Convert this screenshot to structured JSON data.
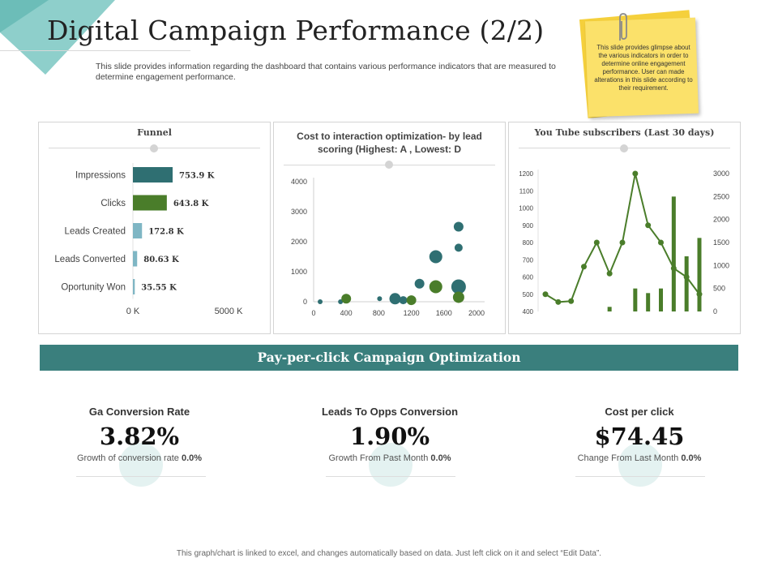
{
  "title": "Digital Campaign Performance (2/2)",
  "description": "This slide provides information regarding the dashboard that contains various performance indicators that are measured to determine engagement performance.",
  "sticky_note": "This slide provides glimpse about the various indicators in order to determine online engagement performance. User can made alterations in this slide according to their requirement.",
  "colors": {
    "teal": "#3a7f7d",
    "green": "#4a7d2a",
    "light_blue": "#7fb6c4",
    "banner": "#3a7f7d"
  },
  "chart_data": [
    {
      "type": "bar",
      "orientation": "horizontal",
      "title": "Funnel",
      "categories": [
        "Impressions",
        "Clicks",
        "Leads Created",
        "Leads Converted",
        "Oportunity Won"
      ],
      "values": [
        753.9,
        643.8,
        172.8,
        80.63,
        35.55
      ],
      "data_labels": [
        "753.9 K",
        "643.8 K",
        "172.8 K",
        "80.63 K",
        "35.55 K"
      ],
      "bar_colors": [
        "#2f6f72",
        "#4a7d2a",
        "#7fb6c4",
        "#7fb6c4",
        "#7fb6c4"
      ],
      "x_tick_labels": [
        "0 K",
        "5000 K"
      ],
      "xlim": [
        0,
        5000
      ]
    },
    {
      "type": "scatter",
      "subtype": "bubble",
      "title": "Cost to interaction optimization- by lead scoring (Highest: A , Lowest: D",
      "x_ticks": [
        0,
        400,
        800,
        1200,
        1600,
        2000
      ],
      "y_ticks": [
        0,
        1000,
        2000,
        3000,
        4000
      ],
      "xlim": [
        0,
        2000
      ],
      "ylim": [
        0,
        4000
      ],
      "series": [
        {
          "name": "teal",
          "color": "#2f6f72",
          "points": [
            {
              "x": 80,
              "y": 0,
              "size": 3
            },
            {
              "x": 330,
              "y": 0,
              "size": 3
            },
            {
              "x": 810,
              "y": 100,
              "size": 3
            },
            {
              "x": 1000,
              "y": 100,
              "size": 7
            },
            {
              "x": 1100,
              "y": 50,
              "size": 5
            },
            {
              "x": 1300,
              "y": 600,
              "size": 6
            },
            {
              "x": 1500,
              "y": 1500,
              "size": 8
            },
            {
              "x": 1780,
              "y": 1800,
              "size": 5
            },
            {
              "x": 1780,
              "y": 2500,
              "size": 6
            },
            {
              "x": 1780,
              "y": 500,
              "size": 9
            }
          ]
        },
        {
          "name": "green",
          "color": "#4a7d2a",
          "points": [
            {
              "x": 400,
              "y": 100,
              "size": 6
            },
            {
              "x": 1200,
              "y": 50,
              "size": 6
            },
            {
              "x": 1500,
              "y": 500,
              "size": 8
            },
            {
              "x": 1780,
              "y": 150,
              "size": 7
            }
          ]
        }
      ]
    },
    {
      "type": "bar",
      "subtype": "combo-bar-line",
      "title": "You Tube subscribers (Last 30 days)",
      "left_axis_ticks": [
        400,
        500,
        600,
        700,
        800,
        900,
        1000,
        1100,
        1200
      ],
      "left_ylim": [
        400,
        1200
      ],
      "right_axis_ticks": [
        0,
        500,
        1000,
        1500,
        2000,
        2500,
        3000
      ],
      "right_ylim": [
        0,
        3000
      ],
      "line_values": [
        500,
        455,
        460,
        660,
        800,
        620,
        800,
        1200,
        900,
        800,
        650,
        600,
        500
      ],
      "bar_values": [
        0,
        0,
        0,
        0,
        0,
        100,
        0,
        500,
        400,
        500,
        2500,
        1200,
        1600
      ],
      "line_color": "#4a7d2a",
      "bar_color": "#4a7d2a"
    }
  ],
  "banner": "Pay-per-click Campaign Optimization",
  "kpis": [
    {
      "label": "Ga Conversion Rate",
      "value": "3.82%",
      "sub": "Growth of conversion  rate",
      "change": "0.0%"
    },
    {
      "label": "Leads To Opps Conversion",
      "value": "1.90%",
      "sub": "Growth From Past Month",
      "change": "0.0%"
    },
    {
      "label": "Cost per click",
      "value": "$74.45",
      "sub": "Change From Last Month",
      "change": "0.0%"
    }
  ],
  "footer": "This graph/chart is linked to excel, and changes automatically based on data. Just left click on it and select “Edit Data”."
}
